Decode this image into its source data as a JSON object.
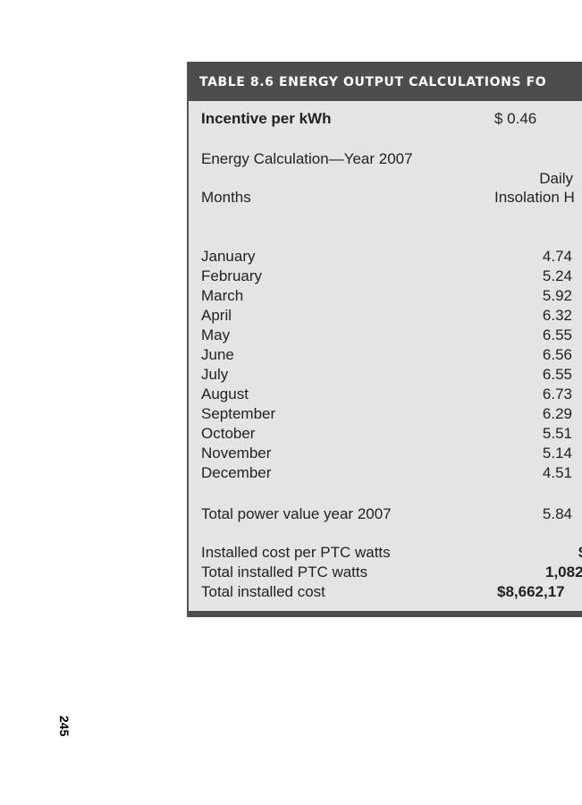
{
  "table": {
    "title": "TABLE 8.6   ENERGY OUTPUT CALCULATIONS FO",
    "incentive": {
      "label": "Incentive per kWh",
      "value": "$ 0.46"
    },
    "section": "Energy Calculation—Year 2007",
    "columns": {
      "months": "Months",
      "daily_line1": "Daily",
      "daily_line2": "Insolation H"
    },
    "rows": [
      {
        "month": "January",
        "value": "4.74"
      },
      {
        "month": "February",
        "value": "5.24"
      },
      {
        "month": "March",
        "value": "5.92"
      },
      {
        "month": "April",
        "value": "6.32"
      },
      {
        "month": "May",
        "value": "6.55"
      },
      {
        "month": "June",
        "value": "6.56"
      },
      {
        "month": "July",
        "value": "6.55"
      },
      {
        "month": "August",
        "value": "6.73"
      },
      {
        "month": "September",
        "value": "6.29"
      },
      {
        "month": "October",
        "value": "5.51"
      },
      {
        "month": "November",
        "value": "5.14"
      },
      {
        "month": "December",
        "value": "4.51"
      }
    ],
    "total_power": {
      "label": "Total power value year 2007",
      "value": "5.84"
    },
    "installed_cost_per_watt": {
      "label": "Installed cost per PTC watts",
      "value": "$"
    },
    "total_watts": {
      "label": "Total installed PTC watts",
      "value": "1,082"
    },
    "total_cost": {
      "label": "Total installed cost",
      "value": "$8,662,17"
    }
  },
  "page_number": "245"
}
